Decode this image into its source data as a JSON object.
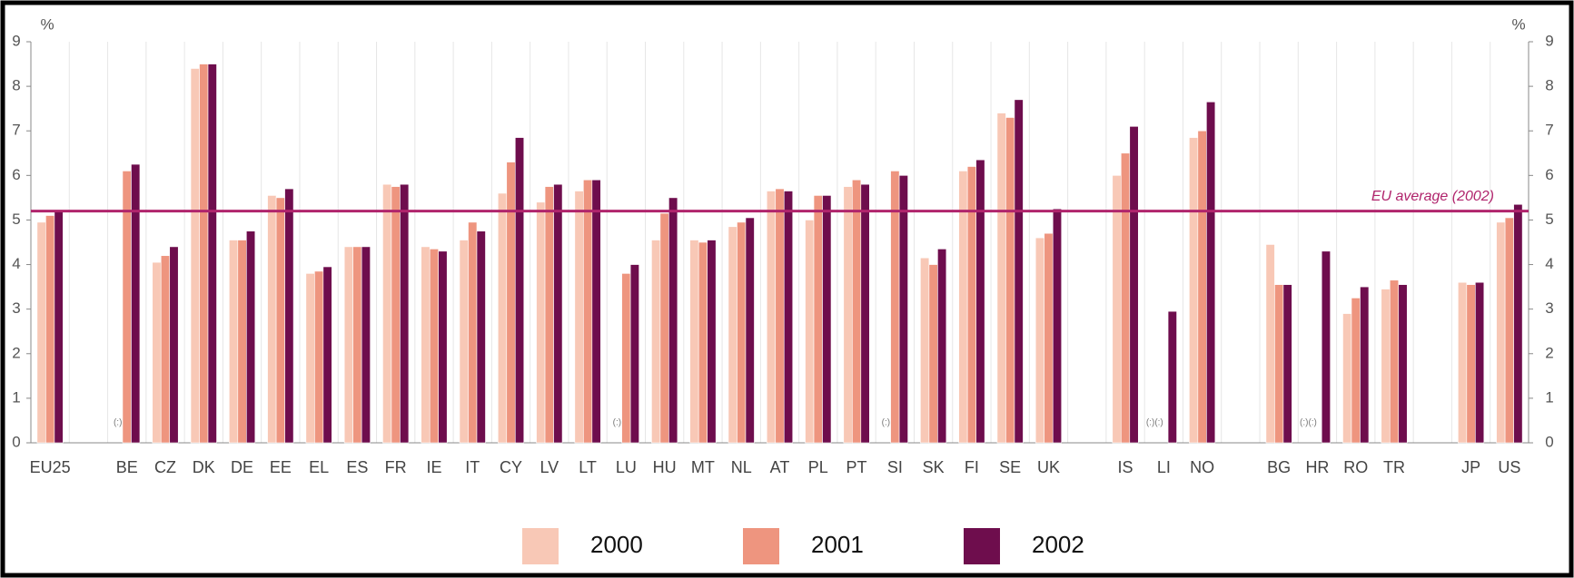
{
  "chart_data": {
    "type": "bar",
    "y_label": "%",
    "y2_label": "%",
    "categories": [
      "EU25",
      null,
      "BE",
      "CZ",
      "DK",
      "DE",
      "EE",
      "EL",
      "ES",
      "FR",
      "IE",
      "IT",
      "CY",
      "LV",
      "LT",
      "LU",
      "HU",
      "MT",
      "NL",
      "AT",
      "PL",
      "PT",
      "SI",
      "SK",
      "FI",
      "SE",
      "UK",
      null,
      "IS",
      "LI",
      "NO",
      null,
      "BG",
      "HR",
      "RO",
      "TR",
      null,
      "JP",
      "US"
    ],
    "series": [
      {
        "name": "2000",
        "color": "#f8c8b6",
        "values": [
          4.95,
          null,
          null,
          4.05,
          8.4,
          4.55,
          5.55,
          3.8,
          4.4,
          5.8,
          4.4,
          4.55,
          5.6,
          5.4,
          5.65,
          null,
          4.55,
          4.55,
          4.85,
          5.65,
          5.0,
          5.75,
          null,
          4.15,
          6.1,
          7.4,
          4.6,
          null,
          6.0,
          null,
          6.85,
          null,
          4.45,
          null,
          2.9,
          3.45,
          null,
          3.6,
          4.95
        ]
      },
      {
        "name": "2001",
        "color": "#ee957f",
        "values": [
          5.1,
          null,
          6.1,
          4.2,
          8.5,
          4.55,
          5.5,
          3.85,
          4.4,
          5.75,
          4.35,
          4.95,
          6.3,
          5.75,
          5.9,
          3.8,
          5.15,
          4.5,
          4.95,
          5.7,
          5.55,
          5.9,
          6.1,
          4.0,
          6.2,
          7.3,
          4.7,
          null,
          6.5,
          null,
          7.0,
          null,
          3.55,
          null,
          3.25,
          3.65,
          null,
          3.55,
          5.05
        ]
      },
      {
        "name": "2002",
        "color": "#6e0d4d",
        "values": [
          5.2,
          null,
          6.25,
          4.4,
          8.5,
          4.75,
          5.7,
          3.95,
          4.4,
          5.8,
          4.3,
          4.75,
          6.85,
          5.8,
          5.9,
          4.0,
          5.5,
          4.55,
          5.05,
          5.65,
          5.55,
          5.8,
          6.0,
          4.35,
          6.35,
          7.7,
          5.25,
          null,
          7.1,
          2.95,
          7.65,
          null,
          3.55,
          4.3,
          3.5,
          3.55,
          null,
          3.6,
          5.35
        ]
      }
    ],
    "ylim": [
      0,
      9
    ],
    "yticks": [
      0,
      1,
      2,
      3,
      4,
      5,
      6,
      7,
      8,
      9
    ],
    "y2lim": [
      0,
      9
    ],
    "y2ticks": [
      0,
      1,
      2,
      3,
      4,
      5,
      6,
      7,
      8,
      9
    ],
    "reference_line": {
      "label": "EU average (2002)",
      "value": 5.2,
      "color": "#b0246c"
    },
    "annotations": [
      {
        "category": "BE",
        "text": "(:)"
      },
      {
        "category": "LU",
        "text": "(:)"
      },
      {
        "category": "SI",
        "text": "(:)"
      },
      {
        "category": "LI",
        "text": "(:)(:)"
      },
      {
        "category": "HR",
        "text": "(:)(:)"
      }
    ],
    "legend": "bottom"
  }
}
